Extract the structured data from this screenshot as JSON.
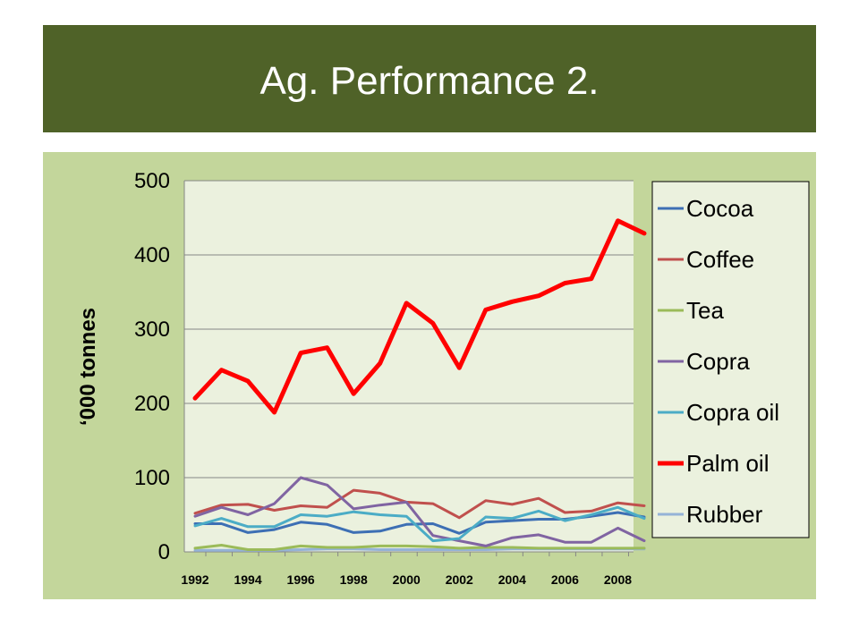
{
  "slide": {
    "title": "Ag. Performance 2."
  },
  "colors": {
    "title_bar": "#4f6228",
    "panel": "#c3d69b",
    "plot_area": "#ebf1de"
  },
  "chart_data": {
    "type": "line",
    "title": "",
    "xlabel": "",
    "ylabel": "‘000 tonnes",
    "xlim": [
      1992,
      2009
    ],
    "ylim": [
      0,
      500
    ],
    "y_ticks": [
      0,
      100,
      200,
      300,
      400,
      500
    ],
    "x_ticks": [
      1992,
      1994,
      1996,
      1998,
      2000,
      2002,
      2004,
      2006,
      2008
    ],
    "grid": true,
    "legend_position": "right",
    "x": [
      1992,
      1993,
      1994,
      1995,
      1996,
      1997,
      1998,
      1999,
      2000,
      2001,
      2002,
      2003,
      2004,
      2005,
      2006,
      2007,
      2008,
      2009
    ],
    "series": [
      {
        "name": "Cocoa",
        "color": "#3d6fb4",
        "values": [
          38,
          38,
          26,
          30,
          40,
          37,
          26,
          28,
          37,
          38,
          25,
          40,
          42,
          44,
          44,
          48,
          53,
          47
        ]
      },
      {
        "name": "Coffee",
        "color": "#c0504d",
        "values": [
          52,
          63,
          64,
          56,
          62,
          60,
          83,
          79,
          67,
          65,
          46,
          69,
          64,
          72,
          53,
          55,
          66,
          62
        ]
      },
      {
        "name": "Tea",
        "color": "#9bbb59",
        "values": [
          5,
          9,
          3,
          3,
          8,
          6,
          6,
          8,
          8,
          7,
          5,
          6,
          6,
          5,
          5,
          5,
          5,
          5
        ]
      },
      {
        "name": "Copra",
        "color": "#8064a2",
        "values": [
          48,
          60,
          50,
          65,
          100,
          90,
          58,
          63,
          67,
          22,
          15,
          8,
          19,
          23,
          13,
          13,
          32,
          15
        ]
      },
      {
        "name": "Copra oil",
        "color": "#4bacc6",
        "values": [
          35,
          45,
          34,
          34,
          50,
          48,
          54,
          50,
          48,
          15,
          18,
          47,
          45,
          55,
          42,
          50,
          60,
          45
        ]
      },
      {
        "name": "Palm oil",
        "color": "#ff0000",
        "values": [
          207,
          245,
          230,
          188,
          268,
          275,
          213,
          254,
          335,
          308,
          248,
          326,
          337,
          345,
          362,
          368,
          446,
          429
        ]
      },
      {
        "name": "Rubber",
        "color": "#95b3d7",
        "values": [
          2,
          2,
          2,
          2,
          3,
          4,
          4,
          3,
          3,
          3,
          3,
          3,
          4,
          4,
          4,
          4,
          4,
          4
        ]
      }
    ]
  }
}
